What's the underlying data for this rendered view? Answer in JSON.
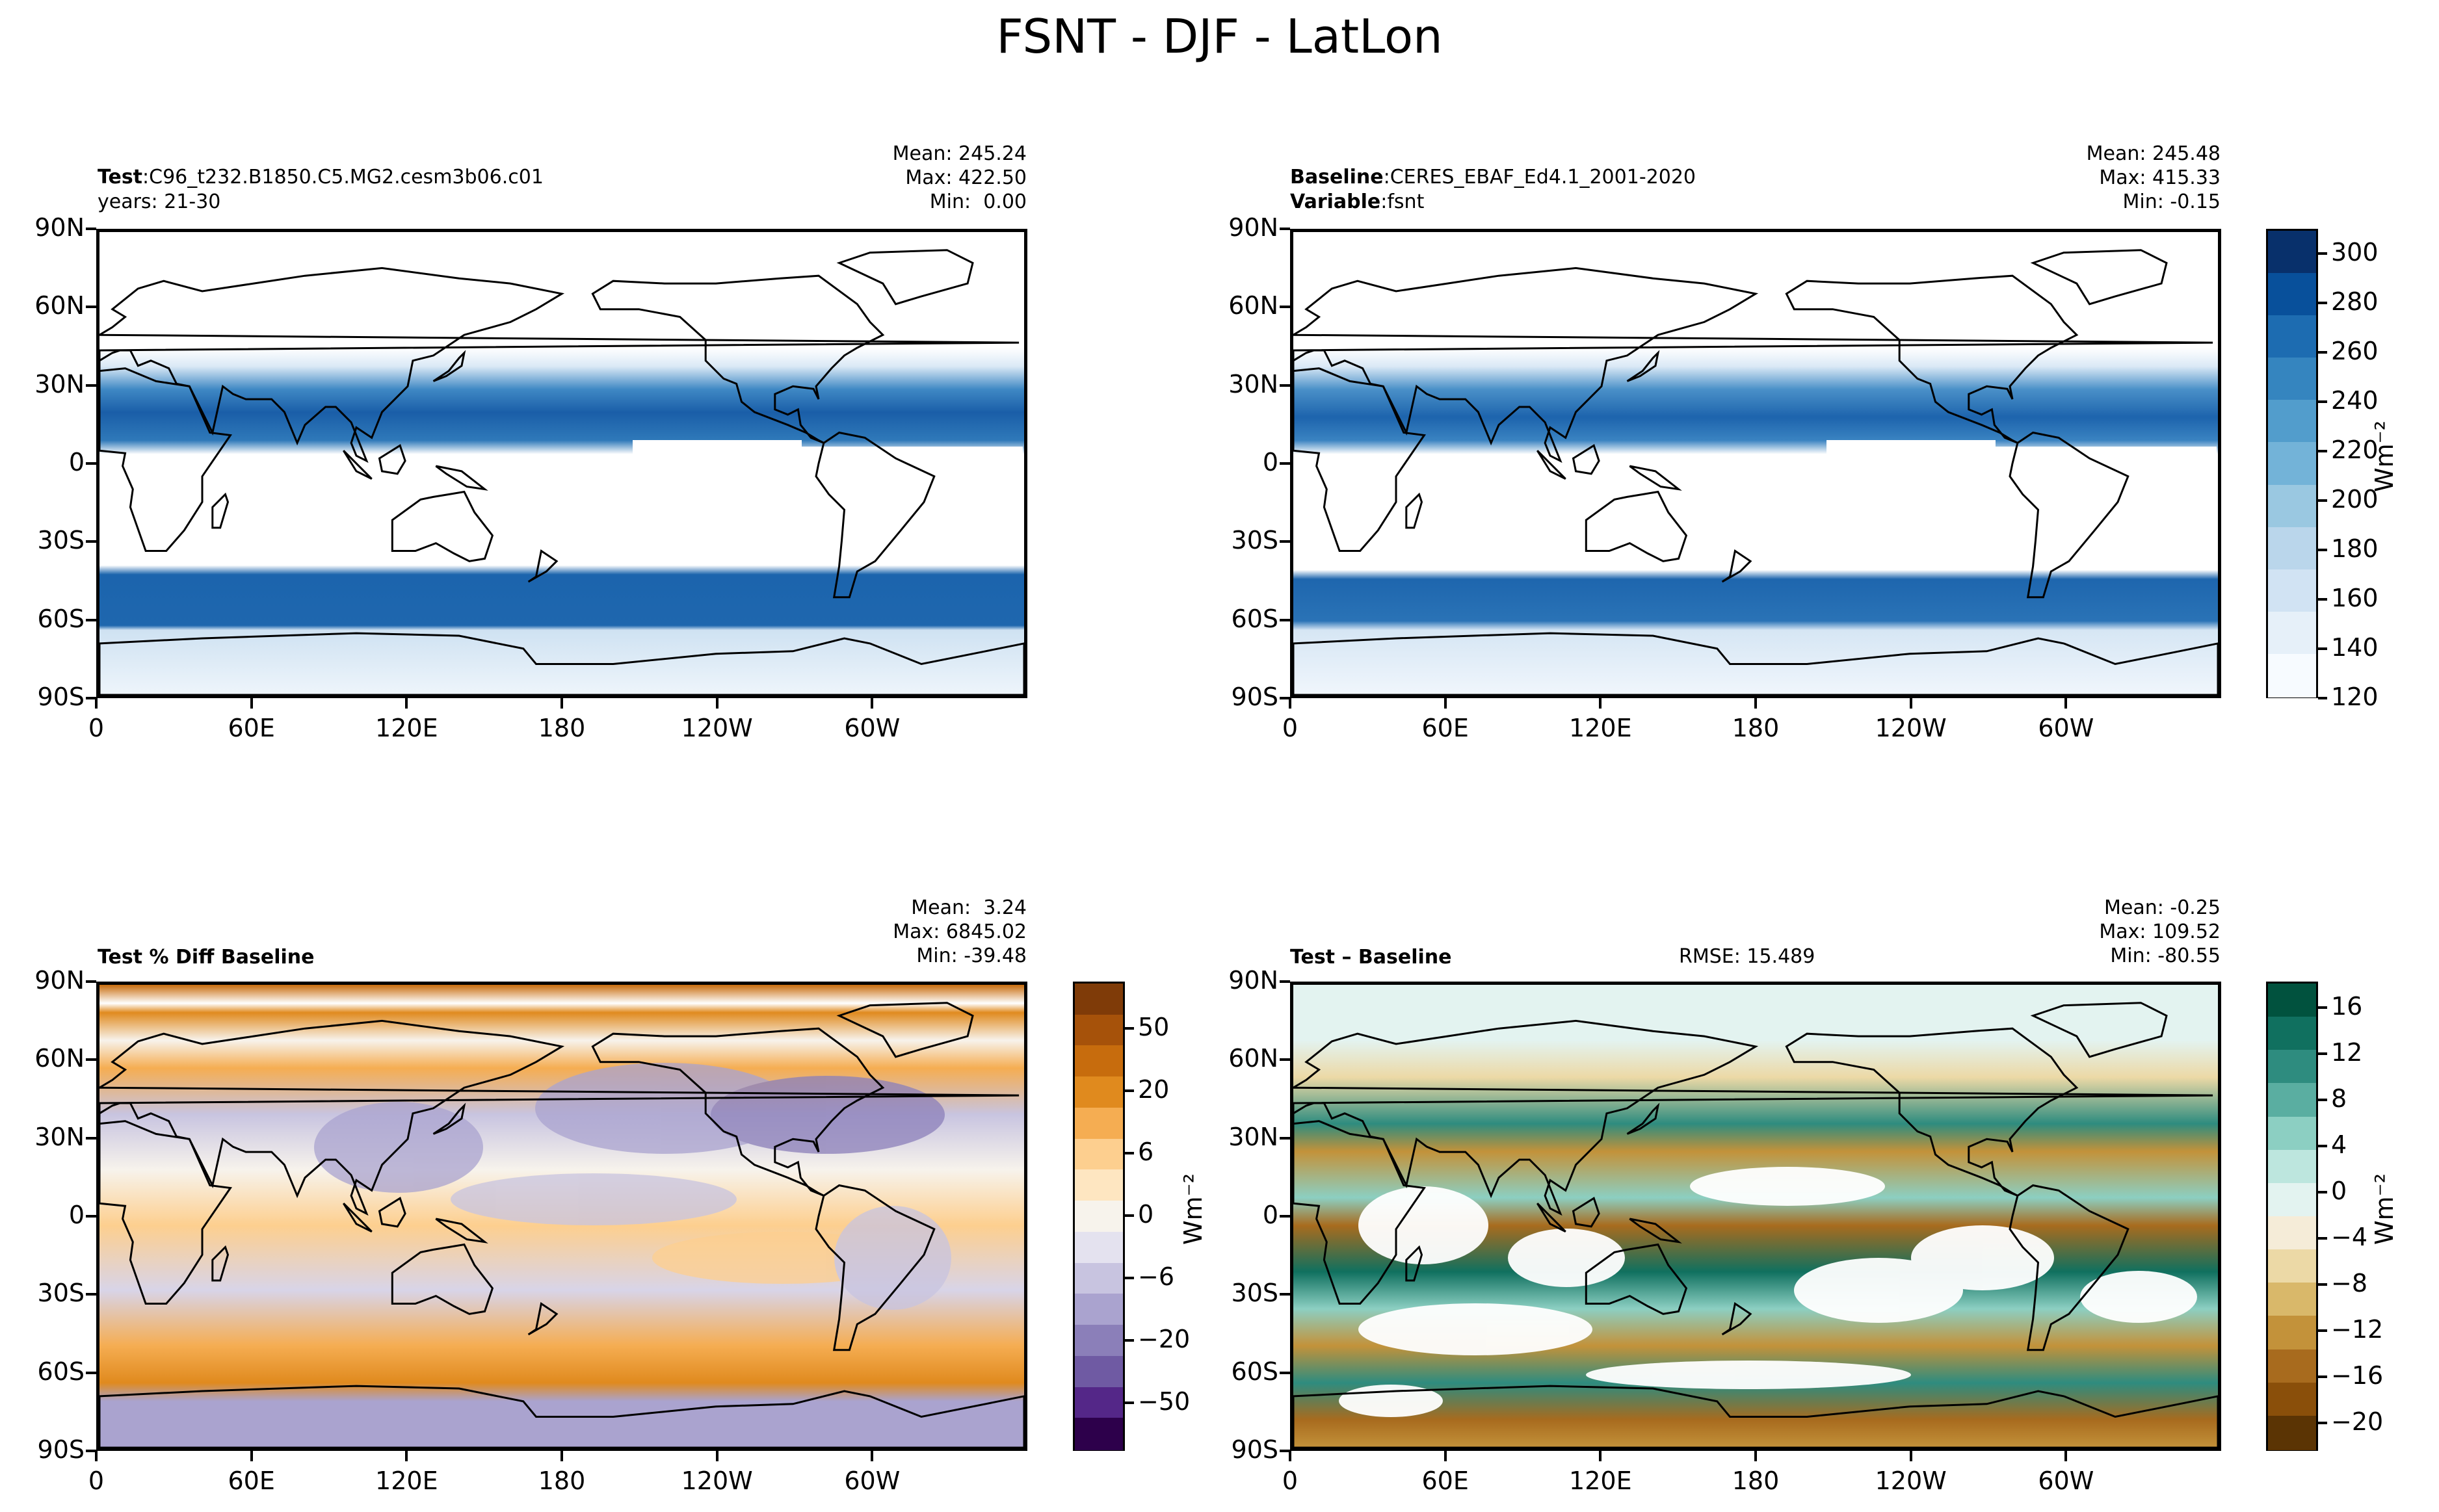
{
  "title": "FSNT - DJF - LatLon",
  "lat_ticks": [
    "90N",
    "60N",
    "30N",
    "0",
    "30S",
    "60S",
    "90S"
  ],
  "lon_ticks": [
    "0",
    "60E",
    "120E",
    "180",
    "120W",
    "60W"
  ],
  "panels": {
    "test": {
      "label": "Test",
      "name": "C96_t232.B1850.C5.MG2.cesm3b06.c01",
      "years": "years: 21-30",
      "stats": "Mean: 245.24\nMax: 422.50\nMin:  0.00"
    },
    "baseline": {
      "label": "Baseline",
      "name": "CERES_EBAF_Ed4.1_2001-2020",
      "variable_label": "Variable",
      "variable": "fsnt",
      "stats": "Mean: 245.48\nMax: 415.33\nMin: -0.15"
    },
    "pctdiff": {
      "label": "Test % Diff Baseline",
      "stats": "Mean:  3.24\nMax: 6845.02\nMin: -39.48"
    },
    "diff": {
      "label": "Test – Baseline",
      "rmse": "RMSE: 15.489",
      "stats": "Mean: -0.25\nMax: 109.52\nMin: -80.55"
    }
  },
  "colorbars": {
    "fields": {
      "unit": "Wm⁻²",
      "ticks": [
        "300",
        "280",
        "260",
        "240",
        "220",
        "200",
        "180",
        "160",
        "140",
        "120"
      ],
      "range": [
        120,
        310
      ],
      "colors": [
        "#f7fbff",
        "#e6f0f9",
        "#d1e3f3",
        "#bad6eb",
        "#9ac8e1",
        "#73b3d8",
        "#529dcc",
        "#3585bf",
        "#1d6cb1",
        "#08509b",
        "#08306b"
      ]
    },
    "pct": {
      "ticks": [
        "50",
        "20",
        "6",
        "0",
        "−6",
        "−20",
        "−50"
      ],
      "colors_top_to_bottom": [
        "#7f3b08",
        "#a6520a",
        "#c76c0d",
        "#e08a1e",
        "#f5ad52",
        "#fdcf8f",
        "#fee6c1",
        "#f7f3ec",
        "#e4e2ef",
        "#c8c4e0",
        "#aaa3cf",
        "#8b7fb9",
        "#6f5aa3",
        "#542788",
        "#2d004b"
      ]
    },
    "diff": {
      "unit": "Wm⁻²",
      "ticks": [
        "16",
        "12",
        "8",
        "4",
        "0",
        "−4",
        "−8",
        "−12",
        "−16",
        "−20"
      ],
      "colors_top_to_bottom": [
        "#01523e",
        "#10705f",
        "#2e8c7f",
        "#5aaea1",
        "#8ccfc2",
        "#bde6de",
        "#e3f3f0",
        "#f5ecd8",
        "#ecd9a6",
        "#d9b86a",
        "#c3923a",
        "#a86b1e",
        "#8a4f0a",
        "#5b3404"
      ]
    }
  },
  "palette": {
    "land_outline": "#000000",
    "field_high": "#08306b",
    "field_mid": "#2f79b9",
    "field_low": "#dbe9f6",
    "pct_pos": "#e08a1e",
    "pct_neg": "#8b7fb9",
    "diff_pos": "#0b6e5a",
    "diff_neg": "#a86b1e"
  }
}
